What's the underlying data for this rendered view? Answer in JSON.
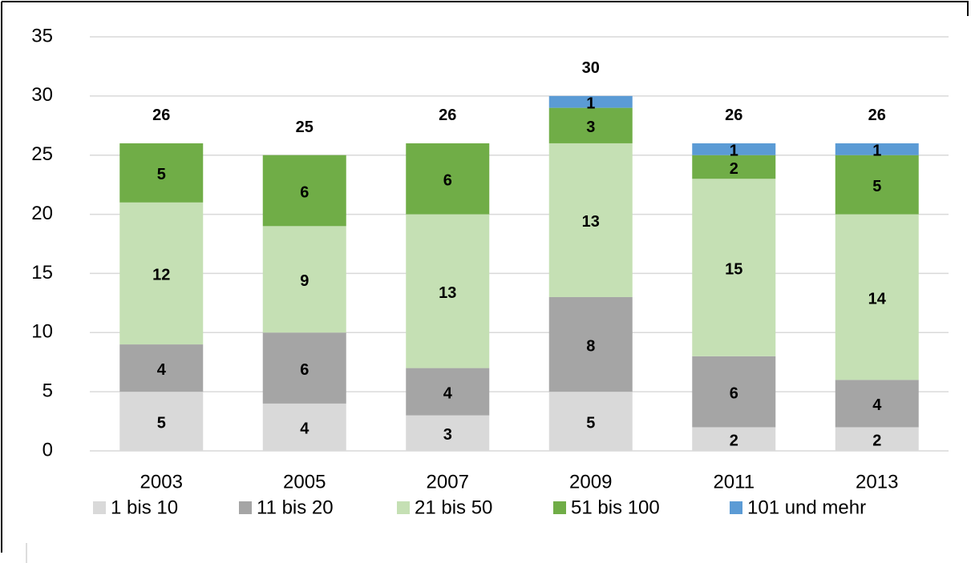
{
  "chart_data": {
    "type": "stacked_bar",
    "categories": [
      "2003",
      "2005",
      "2007",
      "2009",
      "2011",
      "2013"
    ],
    "series": [
      {
        "name": "1 bis 10",
        "color": "#d9d9d9",
        "values": [
          5,
          4,
          3,
          5,
          2,
          2
        ]
      },
      {
        "name": "11 bis 20",
        "color": "#a5a5a5",
        "values": [
          4,
          6,
          4,
          8,
          6,
          4
        ]
      },
      {
        "name": "21 bis 50",
        "color": "#c5e0b4",
        "values": [
          12,
          9,
          13,
          13,
          15,
          14
        ]
      },
      {
        "name": "51 bis 100",
        "color": "#70ad47",
        "values": [
          5,
          6,
          6,
          3,
          2,
          5
        ]
      },
      {
        "name": "101 und mehr",
        "color": "#5b9bd5",
        "values": [
          null,
          null,
          null,
          1,
          1,
          1
        ]
      }
    ],
    "totals": [
      26,
      25,
      26,
      30,
      26,
      26
    ],
    "ylim": [
      0,
      35
    ],
    "yticks": [
      0,
      5,
      10,
      15,
      20,
      25,
      30,
      35
    ],
    "grid": true,
    "legend": "bottom"
  }
}
